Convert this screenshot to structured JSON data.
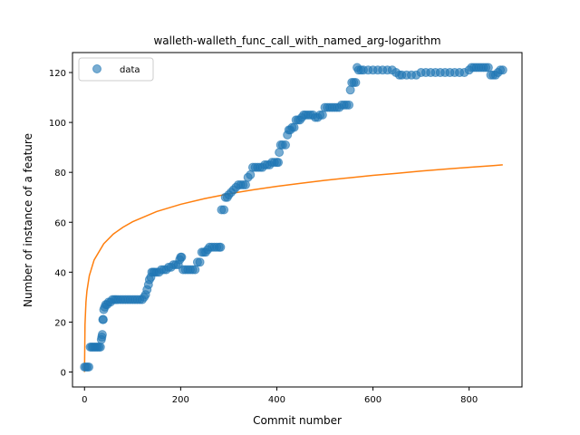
{
  "chart_data": {
    "type": "scatter",
    "title": "walleth-walleth_func_call_with_named_arg-logarithm",
    "xlabel": "Commit number",
    "ylabel": "Number of instance of a feature",
    "xlim": [
      -25,
      910
    ],
    "ylim": [
      -6,
      128
    ],
    "xticks": [
      0,
      200,
      400,
      600,
      800
    ],
    "yticks": [
      0,
      20,
      40,
      60,
      80,
      100,
      120
    ],
    "grid": false,
    "legend": {
      "placement": "top-left",
      "entries": [
        "data"
      ]
    },
    "colors": {
      "data": "#1f77b4",
      "fit": "#ff7f0e"
    },
    "series": [
      {
        "name": "data",
        "kind": "scatter",
        "points": [
          [
            0,
            2
          ],
          [
            3,
            2
          ],
          [
            6,
            2
          ],
          [
            9,
            2
          ],
          [
            12,
            10
          ],
          [
            15,
            10
          ],
          [
            18,
            10
          ],
          [
            21,
            10
          ],
          [
            24,
            10
          ],
          [
            27,
            10
          ],
          [
            30,
            10
          ],
          [
            33,
            10
          ],
          [
            35,
            13
          ],
          [
            36,
            14
          ],
          [
            37,
            15
          ],
          [
            38,
            21
          ],
          [
            39,
            21
          ],
          [
            40,
            25
          ],
          [
            42,
            26
          ],
          [
            44,
            27
          ],
          [
            47,
            27
          ],
          [
            50,
            28
          ],
          [
            54,
            28
          ],
          [
            58,
            29
          ],
          [
            62,
            29
          ],
          [
            66,
            29
          ],
          [
            70,
            29
          ],
          [
            75,
            29
          ],
          [
            80,
            29
          ],
          [
            85,
            29
          ],
          [
            90,
            29
          ],
          [
            95,
            29
          ],
          [
            100,
            29
          ],
          [
            105,
            29
          ],
          [
            110,
            29
          ],
          [
            115,
            29
          ],
          [
            120,
            29
          ],
          [
            124,
            30
          ],
          [
            127,
            31
          ],
          [
            130,
            33
          ],
          [
            133,
            35
          ],
          [
            135,
            37
          ],
          [
            138,
            38
          ],
          [
            140,
            40
          ],
          [
            143,
            40
          ],
          [
            146,
            40
          ],
          [
            150,
            40
          ],
          [
            155,
            40
          ],
          [
            160,
            41
          ],
          [
            165,
            41
          ],
          [
            170,
            41
          ],
          [
            175,
            42
          ],
          [
            180,
            42
          ],
          [
            185,
            43
          ],
          [
            190,
            43
          ],
          [
            195,
            43
          ],
          [
            198,
            45
          ],
          [
            200,
            46
          ],
          [
            202,
            46
          ],
          [
            205,
            41
          ],
          [
            210,
            41
          ],
          [
            215,
            41
          ],
          [
            220,
            41
          ],
          [
            225,
            41
          ],
          [
            230,
            41
          ],
          [
            235,
            44
          ],
          [
            240,
            44
          ],
          [
            244,
            48
          ],
          [
            248,
            48
          ],
          [
            252,
            48
          ],
          [
            256,
            49
          ],
          [
            260,
            50
          ],
          [
            265,
            50
          ],
          [
            270,
            50
          ],
          [
            275,
            50
          ],
          [
            280,
            50
          ],
          [
            283,
            50
          ],
          [
            285,
            65
          ],
          [
            290,
            65
          ],
          [
            293,
            70
          ],
          [
            297,
            70
          ],
          [
            300,
            71
          ],
          [
            305,
            72
          ],
          [
            310,
            73
          ],
          [
            315,
            74
          ],
          [
            320,
            75
          ],
          [
            325,
            75
          ],
          [
            330,
            75
          ],
          [
            335,
            75
          ],
          [
            340,
            78
          ],
          [
            345,
            79
          ],
          [
            350,
            82
          ],
          [
            355,
            82
          ],
          [
            360,
            82
          ],
          [
            365,
            82
          ],
          [
            370,
            82
          ],
          [
            375,
            83
          ],
          [
            380,
            83
          ],
          [
            385,
            83
          ],
          [
            390,
            84
          ],
          [
            395,
            84
          ],
          [
            400,
            84
          ],
          [
            403,
            84
          ],
          [
            405,
            88
          ],
          [
            408,
            91
          ],
          [
            412,
            91
          ],
          [
            418,
            91
          ],
          [
            422,
            95
          ],
          [
            425,
            97
          ],
          [
            428,
            97
          ],
          [
            432,
            98
          ],
          [
            436,
            98
          ],
          [
            440,
            101
          ],
          [
            444,
            101
          ],
          [
            448,
            101
          ],
          [
            452,
            102
          ],
          [
            456,
            103
          ],
          [
            460,
            103
          ],
          [
            465,
            103
          ],
          [
            470,
            103
          ],
          [
            475,
            103
          ],
          [
            480,
            102
          ],
          [
            485,
            102
          ],
          [
            490,
            103
          ],
          [
            495,
            103
          ],
          [
            500,
            106
          ],
          [
            505,
            106
          ],
          [
            510,
            106
          ],
          [
            515,
            106
          ],
          [
            520,
            106
          ],
          [
            525,
            106
          ],
          [
            530,
            106
          ],
          [
            535,
            107
          ],
          [
            540,
            107
          ],
          [
            545,
            107
          ],
          [
            550,
            107
          ],
          [
            553,
            113
          ],
          [
            556,
            116
          ],
          [
            560,
            116
          ],
          [
            564,
            116
          ],
          [
            567,
            122
          ],
          [
            570,
            121
          ],
          [
            575,
            121
          ],
          [
            580,
            121
          ],
          [
            590,
            121
          ],
          [
            600,
            121
          ],
          [
            610,
            121
          ],
          [
            620,
            121
          ],
          [
            630,
            121
          ],
          [
            640,
            121
          ],
          [
            648,
            120
          ],
          [
            655,
            119
          ],
          [
            660,
            119
          ],
          [
            670,
            119
          ],
          [
            680,
            119
          ],
          [
            690,
            119
          ],
          [
            700,
            120
          ],
          [
            710,
            120
          ],
          [
            720,
            120
          ],
          [
            730,
            120
          ],
          [
            740,
            120
          ],
          [
            750,
            120
          ],
          [
            760,
            120
          ],
          [
            770,
            120
          ],
          [
            780,
            120
          ],
          [
            790,
            120
          ],
          [
            800,
            121
          ],
          [
            805,
            122
          ],
          [
            810,
            122
          ],
          [
            815,
            122
          ],
          [
            820,
            122
          ],
          [
            825,
            122
          ],
          [
            830,
            122
          ],
          [
            835,
            122
          ],
          [
            840,
            122
          ],
          [
            845,
            119
          ],
          [
            850,
            119
          ],
          [
            855,
            119
          ],
          [
            860,
            120
          ],
          [
            865,
            121
          ],
          [
            870,
            121
          ]
        ]
      },
      {
        "kind": "line",
        "function": "logarithmic",
        "points": [
          [
            0,
            0
          ],
          [
            1,
            19
          ],
          [
            3,
            28
          ],
          [
            5,
            32.4
          ],
          [
            10,
            38.6
          ],
          [
            20,
            44.9
          ],
          [
            40,
            51.4
          ],
          [
            60,
            55.3
          ],
          [
            80,
            58.0
          ],
          [
            100,
            60.2
          ],
          [
            150,
            64.3
          ],
          [
            200,
            67.2
          ],
          [
            250,
            69.5
          ],
          [
            300,
            71.4
          ],
          [
            350,
            73.0
          ],
          [
            400,
            74.4
          ],
          [
            450,
            75.6
          ],
          [
            500,
            76.8
          ],
          [
            550,
            77.8
          ],
          [
            600,
            78.8
          ],
          [
            650,
            79.6
          ],
          [
            700,
            80.5
          ],
          [
            750,
            81.3
          ],
          [
            800,
            82.0
          ],
          [
            850,
            82.7
          ],
          [
            870,
            83.0
          ]
        ]
      }
    ]
  }
}
